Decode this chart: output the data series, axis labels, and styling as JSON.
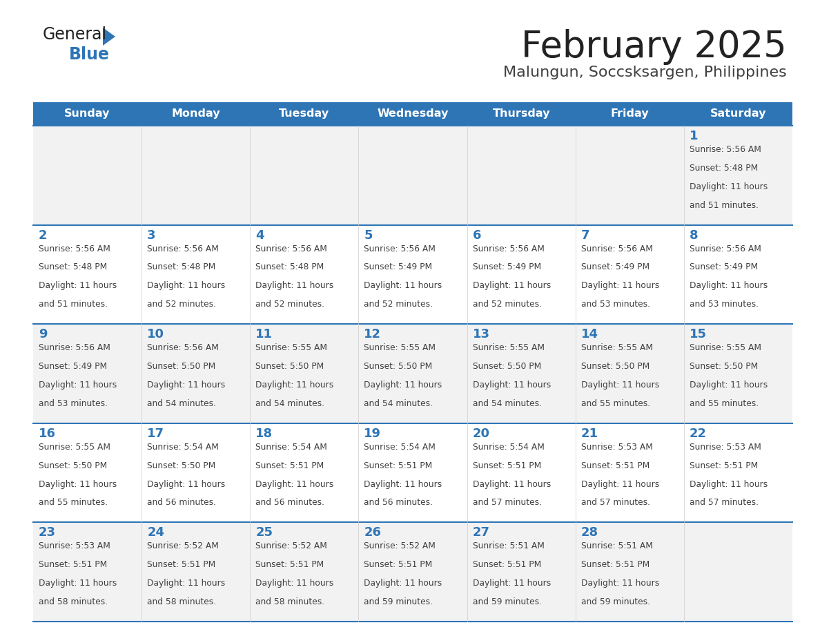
{
  "title": "February 2025",
  "subtitle": "Malungun, Soccsksargen, Philippines",
  "header_color": "#2E75B6",
  "header_text_color": "#FFFFFF",
  "cell_bg_week1": "#F2F2F2",
  "cell_bg_week2": "#FFFFFF",
  "cell_bg_week3": "#F2F2F2",
  "cell_bg_week4": "#FFFFFF",
  "cell_bg_week5": "#F2F2F2",
  "day_number_color": "#2E75B6",
  "text_color": "#404040",
  "border_color": "#2E75B6",
  "days_of_week": [
    "Sunday",
    "Monday",
    "Tuesday",
    "Wednesday",
    "Thursday",
    "Friday",
    "Saturday"
  ],
  "weeks": [
    [
      {
        "day": null,
        "sunrise": null,
        "sunset": null,
        "daylight": null
      },
      {
        "day": null,
        "sunrise": null,
        "sunset": null,
        "daylight": null
      },
      {
        "day": null,
        "sunrise": null,
        "sunset": null,
        "daylight": null
      },
      {
        "day": null,
        "sunrise": null,
        "sunset": null,
        "daylight": null
      },
      {
        "day": null,
        "sunrise": null,
        "sunset": null,
        "daylight": null
      },
      {
        "day": null,
        "sunrise": null,
        "sunset": null,
        "daylight": null
      },
      {
        "day": 1,
        "sunrise": "5:56 AM",
        "sunset": "5:48 PM",
        "daylight": "11 hours and 51 minutes."
      }
    ],
    [
      {
        "day": 2,
        "sunrise": "5:56 AM",
        "sunset": "5:48 PM",
        "daylight": "11 hours and 51 minutes."
      },
      {
        "day": 3,
        "sunrise": "5:56 AM",
        "sunset": "5:48 PM",
        "daylight": "11 hours and 52 minutes."
      },
      {
        "day": 4,
        "sunrise": "5:56 AM",
        "sunset": "5:48 PM",
        "daylight": "11 hours and 52 minutes."
      },
      {
        "day": 5,
        "sunrise": "5:56 AM",
        "sunset": "5:49 PM",
        "daylight": "11 hours and 52 minutes."
      },
      {
        "day": 6,
        "sunrise": "5:56 AM",
        "sunset": "5:49 PM",
        "daylight": "11 hours and 52 minutes."
      },
      {
        "day": 7,
        "sunrise": "5:56 AM",
        "sunset": "5:49 PM",
        "daylight": "11 hours and 53 minutes."
      },
      {
        "day": 8,
        "sunrise": "5:56 AM",
        "sunset": "5:49 PM",
        "daylight": "11 hours and 53 minutes."
      }
    ],
    [
      {
        "day": 9,
        "sunrise": "5:56 AM",
        "sunset": "5:49 PM",
        "daylight": "11 hours and 53 minutes."
      },
      {
        "day": 10,
        "sunrise": "5:56 AM",
        "sunset": "5:50 PM",
        "daylight": "11 hours and 54 minutes."
      },
      {
        "day": 11,
        "sunrise": "5:55 AM",
        "sunset": "5:50 PM",
        "daylight": "11 hours and 54 minutes."
      },
      {
        "day": 12,
        "sunrise": "5:55 AM",
        "sunset": "5:50 PM",
        "daylight": "11 hours and 54 minutes."
      },
      {
        "day": 13,
        "sunrise": "5:55 AM",
        "sunset": "5:50 PM",
        "daylight": "11 hours and 54 minutes."
      },
      {
        "day": 14,
        "sunrise": "5:55 AM",
        "sunset": "5:50 PM",
        "daylight": "11 hours and 55 minutes."
      },
      {
        "day": 15,
        "sunrise": "5:55 AM",
        "sunset": "5:50 PM",
        "daylight": "11 hours and 55 minutes."
      }
    ],
    [
      {
        "day": 16,
        "sunrise": "5:55 AM",
        "sunset": "5:50 PM",
        "daylight": "11 hours and 55 minutes."
      },
      {
        "day": 17,
        "sunrise": "5:54 AM",
        "sunset": "5:50 PM",
        "daylight": "11 hours and 56 minutes."
      },
      {
        "day": 18,
        "sunrise": "5:54 AM",
        "sunset": "5:51 PM",
        "daylight": "11 hours and 56 minutes."
      },
      {
        "day": 19,
        "sunrise": "5:54 AM",
        "sunset": "5:51 PM",
        "daylight": "11 hours and 56 minutes."
      },
      {
        "day": 20,
        "sunrise": "5:54 AM",
        "sunset": "5:51 PM",
        "daylight": "11 hours and 57 minutes."
      },
      {
        "day": 21,
        "sunrise": "5:53 AM",
        "sunset": "5:51 PM",
        "daylight": "11 hours and 57 minutes."
      },
      {
        "day": 22,
        "sunrise": "5:53 AM",
        "sunset": "5:51 PM",
        "daylight": "11 hours and 57 minutes."
      }
    ],
    [
      {
        "day": 23,
        "sunrise": "5:53 AM",
        "sunset": "5:51 PM",
        "daylight": "11 hours and 58 minutes."
      },
      {
        "day": 24,
        "sunrise": "5:52 AM",
        "sunset": "5:51 PM",
        "daylight": "11 hours and 58 minutes."
      },
      {
        "day": 25,
        "sunrise": "5:52 AM",
        "sunset": "5:51 PM",
        "daylight": "11 hours and 58 minutes."
      },
      {
        "day": 26,
        "sunrise": "5:52 AM",
        "sunset": "5:51 PM",
        "daylight": "11 hours and 59 minutes."
      },
      {
        "day": 27,
        "sunrise": "5:51 AM",
        "sunset": "5:51 PM",
        "daylight": "11 hours and 59 minutes."
      },
      {
        "day": 28,
        "sunrise": "5:51 AM",
        "sunset": "5:51 PM",
        "daylight": "11 hours and 59 minutes."
      },
      {
        "day": null,
        "sunrise": null,
        "sunset": null,
        "daylight": null
      }
    ]
  ],
  "cell_bg_colors": [
    "#F2F2F2",
    "#FFFFFF",
    "#F2F2F2",
    "#FFFFFF",
    "#F2F2F2"
  ]
}
